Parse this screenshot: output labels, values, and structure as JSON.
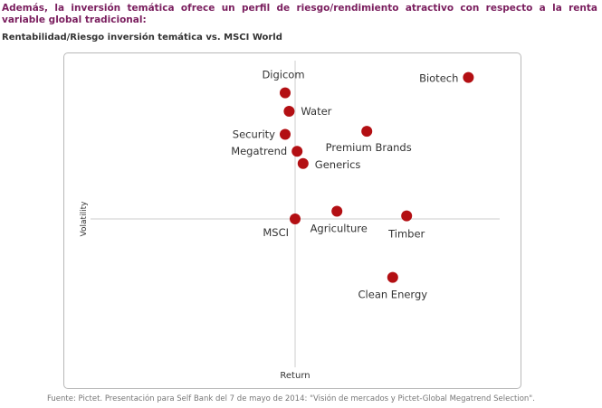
{
  "header": {
    "headline": "Además, la inversión temática ofrece un perfil de riesgo/rendimiento atractivo con respecto a la renta variable global tradicional:",
    "subtitle": "Rentabilidad/Riesgo inversión temática vs. MSCI World"
  },
  "footer": {
    "source": "Fuente: Pictet. Presentación para Self Bank del 7 de mayo de 2014: \"Visión de mercados y Pictet-Global Megatrend Selection\"."
  },
  "colors": {
    "headline": "#7a1e5e",
    "point": "#b30f13",
    "axis": "#cccccc",
    "label": "#333333"
  },
  "chart_data": {
    "type": "scatter",
    "title": "Rentabilidad/Riesgo inversión temática vs. MSCI World",
    "xlabel": "Return",
    "ylabel": "Volatility",
    "grid": false,
    "axis_crosshair": "MSCI",
    "xlim": [
      -1.0,
      1.0
    ],
    "ylim": [
      -1.0,
      1.0
    ],
    "points": [
      {
        "label": "Digicom",
        "x": -0.05,
        "y": 0.82
      },
      {
        "label": "Water",
        "x": -0.03,
        "y": 0.7
      },
      {
        "label": "Security",
        "x": -0.05,
        "y": 0.55
      },
      {
        "label": "Megatrend",
        "x": 0.01,
        "y": 0.44
      },
      {
        "label": "Generics",
        "x": 0.04,
        "y": 0.36
      },
      {
        "label": "Premium Brands",
        "x": 0.36,
        "y": 0.57
      },
      {
        "label": "Biotech",
        "x": 0.87,
        "y": 0.92
      },
      {
        "label": "MSCI",
        "x": 0.0,
        "y": 0.0
      },
      {
        "label": "Agriculture",
        "x": 0.21,
        "y": 0.05
      },
      {
        "label": "Timber",
        "x": 0.56,
        "y": 0.02
      },
      {
        "label": "Clean Energy",
        "x": 0.49,
        "y": -0.38
      }
    ]
  }
}
